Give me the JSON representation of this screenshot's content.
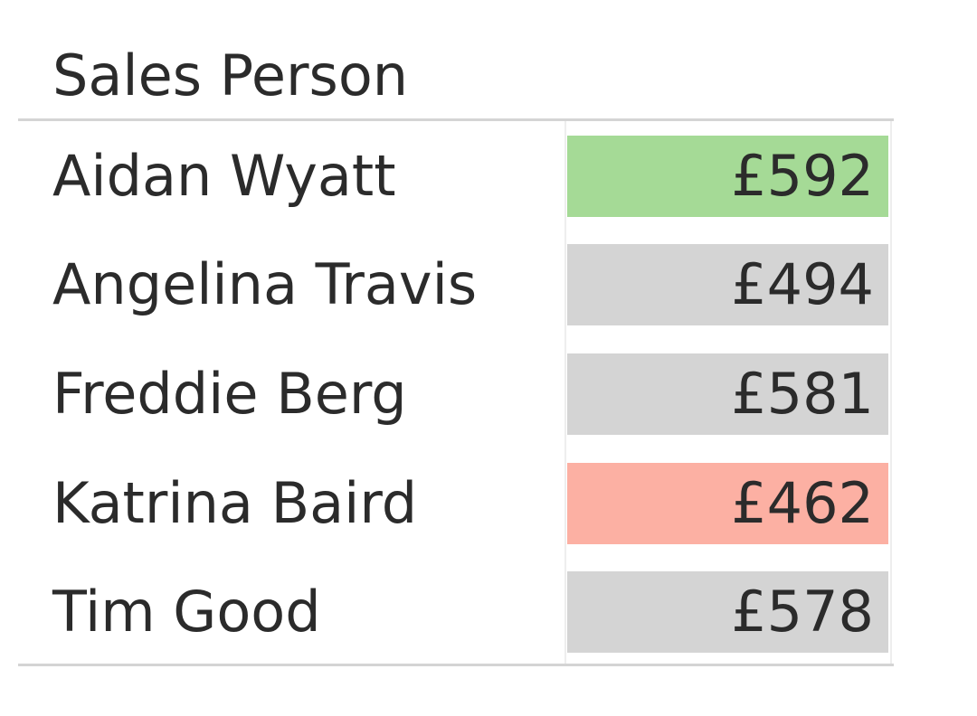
{
  "table": {
    "header": "Sales Person",
    "rows": [
      {
        "name": "Aidan Wyatt",
        "value": "£592",
        "highlight": "high",
        "color": "#a5da96"
      },
      {
        "name": "Angelina Travis",
        "value": "£494",
        "highlight": "neutral",
        "color": "#d4d4d4"
      },
      {
        "name": "Freddie Berg",
        "value": "£581",
        "highlight": "neutral",
        "color": "#d4d4d4"
      },
      {
        "name": "Katrina Baird",
        "value": "£462",
        "highlight": "low",
        "color": "#fcb0a3"
      },
      {
        "name": "Tim Good",
        "value": "£578",
        "highlight": "neutral",
        "color": "#d4d4d4"
      }
    ]
  },
  "chart_data": {
    "type": "table",
    "columns": [
      "Sales Person",
      ""
    ],
    "categories": [
      "Aidan Wyatt",
      "Angelina Travis",
      "Freddie Berg",
      "Katrina Baird",
      "Tim Good"
    ],
    "values": [
      592,
      494,
      581,
      462,
      578
    ],
    "currency": "£",
    "highlights": {
      "max": "Aidan Wyatt",
      "min": "Katrina Baird"
    }
  },
  "colors": {
    "high": "#a5da96",
    "low": "#fcb0a3",
    "neutral": "#d4d4d4",
    "text": "#2b2b2b",
    "rule": "#d4d4d4"
  }
}
